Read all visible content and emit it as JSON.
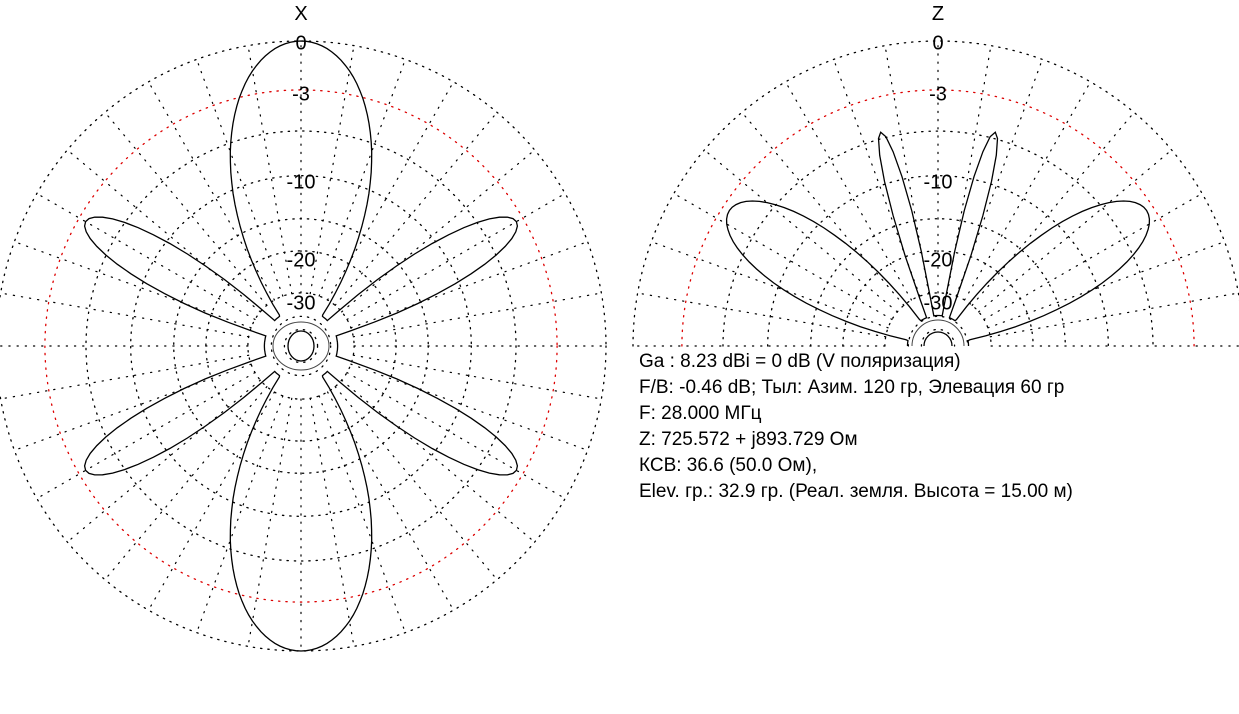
{
  "chart_data": [
    {
      "type": "polar",
      "title": "X",
      "ring_labels": [
        "0",
        "-3",
        "-10",
        "-20",
        "-30"
      ],
      "rings_db": [
        0,
        -3,
        -10,
        -20,
        -30
      ],
      "grid": true,
      "lobes": [
        {
          "direction_deg": 0,
          "level_db": 0
        },
        {
          "direction_deg": 180,
          "level_db": 0
        },
        {
          "direction_deg": 60,
          "level_db": -3.5
        },
        {
          "direction_deg": 120,
          "level_db": -3.5
        },
        {
          "direction_deg": 240,
          "level_db": -3.5
        },
        {
          "direction_deg": 300,
          "level_db": -3.5
        }
      ]
    },
    {
      "type": "polar",
      "title": "Z",
      "half_plane": true,
      "ring_labels": [
        "0",
        "-3",
        "-10",
        "-20",
        "-30"
      ],
      "rings_db": [
        0,
        -3,
        -10,
        -20,
        -30
      ],
      "grid": true,
      "lobes": [
        {
          "elevation_deg": 33,
          "level_db": -3.5
        },
        {
          "elevation_deg": 147,
          "level_db": -3.5
        },
        {
          "elevation_deg": 75,
          "level_db": -5.5
        },
        {
          "elevation_deg": 105,
          "level_db": -5.5
        }
      ]
    }
  ],
  "info": {
    "line1": "Ga : 8.23 dBi = 0 dB  (V поляризация)",
    "line2": "F/B: -0.46 dB; Тыл: Азим. 120 гр, Элевация 60 гр",
    "line3": "F: 28.000 МГц",
    "line4": "Z: 725.572 + j893.729 Ом",
    "line5": "КСВ: 36.6 (50.0 Ом),",
    "line6": "Elev. гр.: 32.9 гр. (Реал. земля. Высота = 15.00 м)"
  },
  "colors": {
    "grid_dots": "#000000",
    "minus3_ring": "#dd0000",
    "pattern": "#000000"
  }
}
